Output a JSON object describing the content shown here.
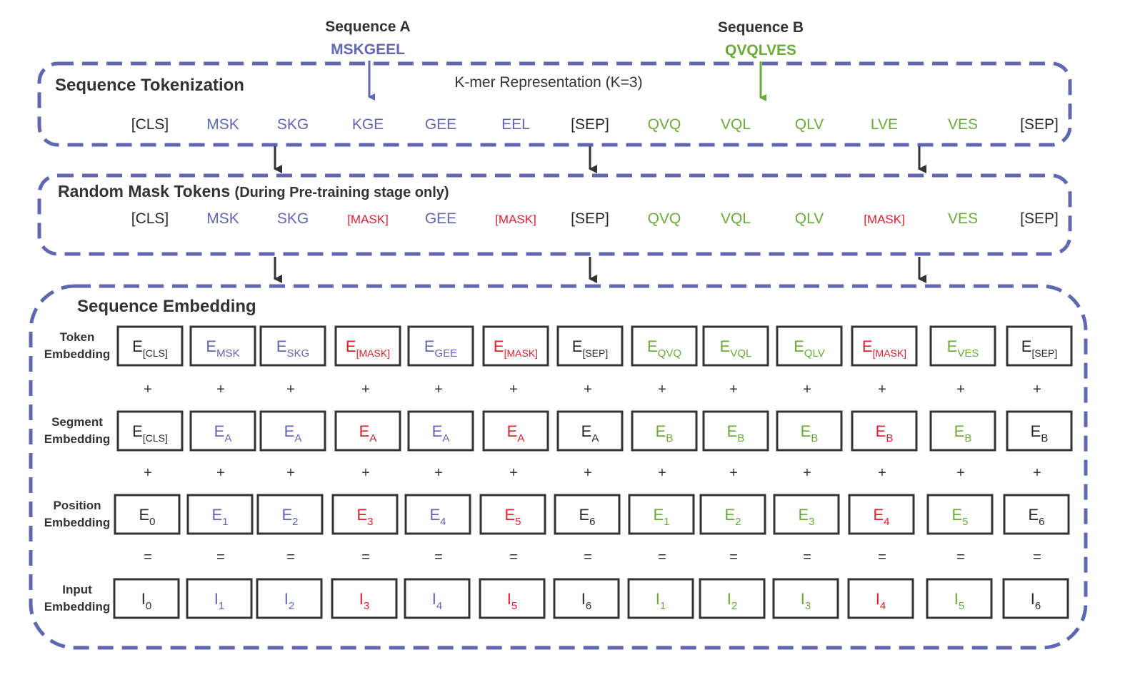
{
  "colors": {
    "a": "#5f67b1",
    "b": "#6aaa3a",
    "mask": "#e0202e",
    "special": "#2a2a2a",
    "border": "#5f67b1"
  },
  "header": {
    "seq_a_title": "Sequence A",
    "seq_a_value": "MSKGEEL",
    "seq_b_title": "Sequence B",
    "seq_b_value": "QVQLVES"
  },
  "tokenization": {
    "title": "Sequence Tokenization",
    "subtitle": "K-mer Representation (K=3)"
  },
  "masking": {
    "title": "Random Mask Tokens",
    "title_note": "(During Pre-training stage only)"
  },
  "embedding": {
    "title": "Sequence Embedding",
    "row_labels": [
      [
        "Token",
        "Embedding"
      ],
      [
        "Segment",
        "Embedding"
      ],
      [
        "Position",
        "Embedding"
      ],
      [
        "Input",
        "Embedding"
      ]
    ],
    "ops": [
      "+",
      "+",
      "="
    ]
  },
  "columns": [
    {
      "token": "[CLS]",
      "masked": "[CLS]",
      "color": "special",
      "tok_sub": "[CLS]",
      "seg_sub": "[CLS]",
      "pos": "0"
    },
    {
      "token": "MSK",
      "masked": "MSK",
      "color": "a",
      "tok_sub": "MSK",
      "seg_sub": "A",
      "pos": "1"
    },
    {
      "token": "SKG",
      "masked": "SKG",
      "color": "a",
      "tok_sub": "SKG",
      "seg_sub": "A",
      "pos": "2"
    },
    {
      "token": "KGE",
      "masked": "[MASK]",
      "color": "mask",
      "tok_sub": "[MASK]",
      "seg_sub": "A",
      "pos": "3",
      "orig_color": "a"
    },
    {
      "token": "GEE",
      "masked": "GEE",
      "color": "a",
      "tok_sub": "GEE",
      "seg_sub": "A",
      "pos": "4"
    },
    {
      "token": "EEL",
      "masked": "[MASK]",
      "color": "mask",
      "tok_sub": "[MASK]",
      "seg_sub": "A",
      "pos": "5",
      "orig_color": "a"
    },
    {
      "token": "[SEP]",
      "masked": "[SEP]",
      "color": "special",
      "tok_sub": "[SEP]",
      "seg_sub": "A",
      "pos": "6"
    },
    {
      "token": "QVQ",
      "masked": "QVQ",
      "color": "b",
      "tok_sub": "QVQ",
      "seg_sub": "B",
      "pos": "1"
    },
    {
      "token": "VQL",
      "masked": "VQL",
      "color": "b",
      "tok_sub": "VQL",
      "seg_sub": "B",
      "pos": "2"
    },
    {
      "token": "QLV",
      "masked": "QLV",
      "color": "b",
      "tok_sub": "QLV",
      "seg_sub": "B",
      "pos": "3"
    },
    {
      "token": "LVE",
      "masked": "[MASK]",
      "color": "mask",
      "tok_sub": "[MASK]",
      "seg_sub": "B",
      "pos": "4",
      "orig_color": "b"
    },
    {
      "token": "VES",
      "masked": "VES",
      "color": "b",
      "tok_sub": "VES",
      "seg_sub": "B",
      "pos": "5"
    },
    {
      "token": "[SEP]",
      "masked": "[SEP]",
      "color": "special",
      "tok_sub": "[SEP]",
      "seg_sub": "B",
      "pos": "6"
    }
  ],
  "letters": {
    "embedding": "E",
    "input": "I"
  }
}
